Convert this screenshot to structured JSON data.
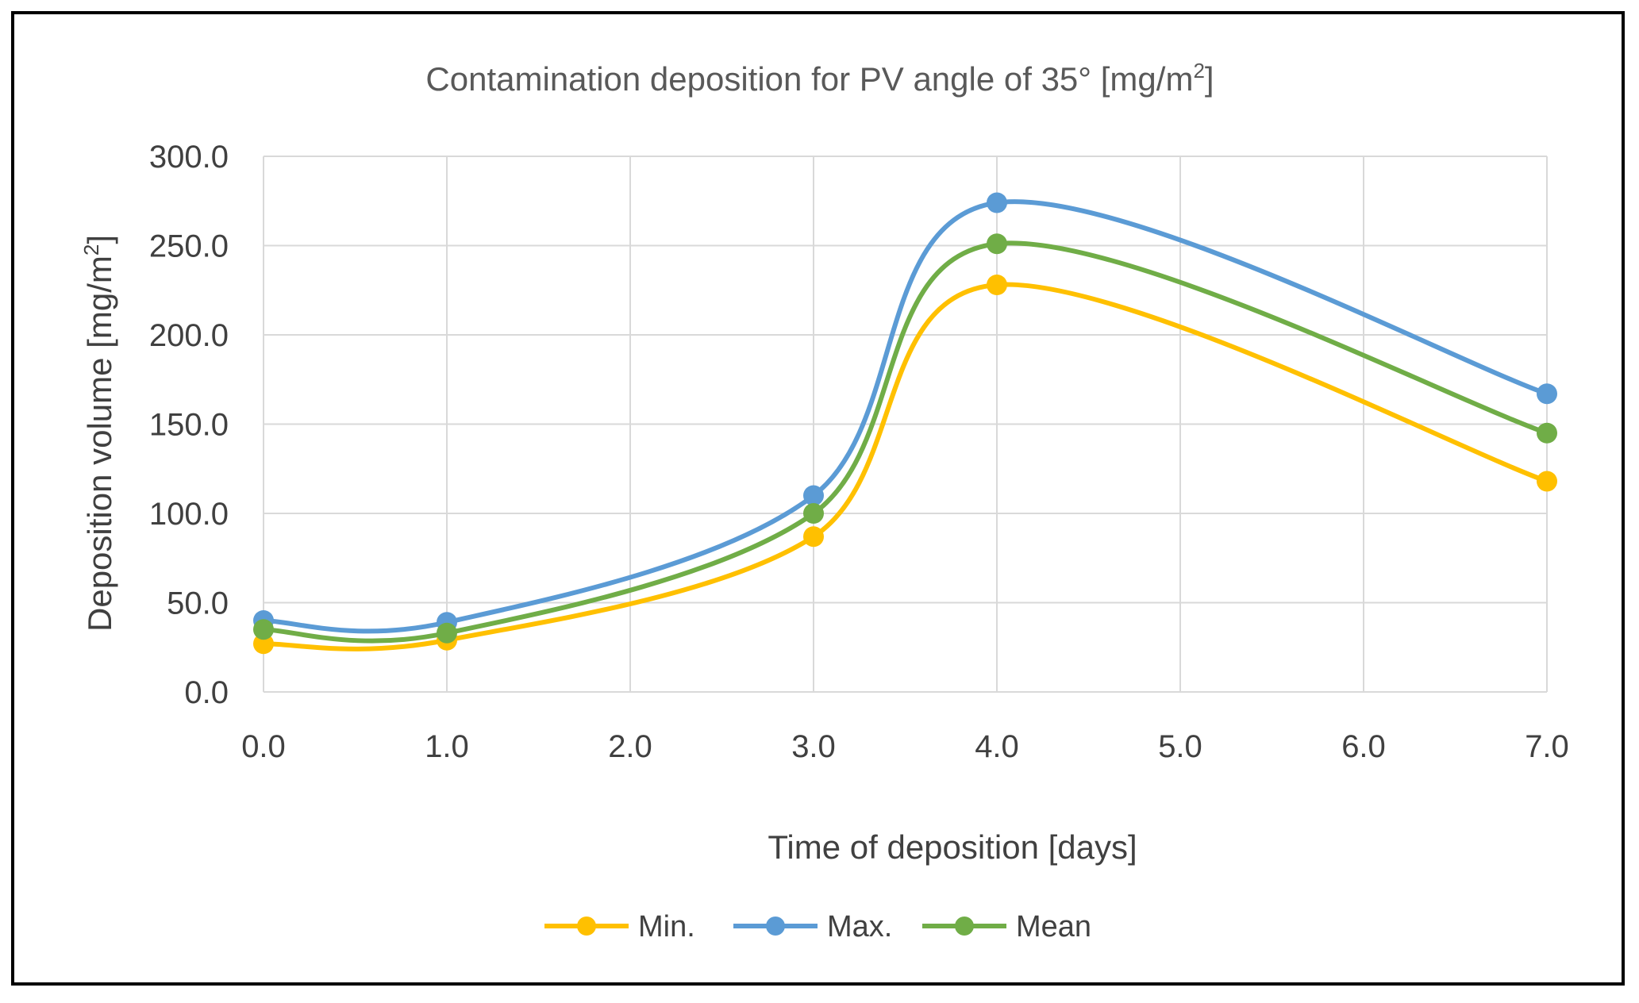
{
  "chart_data": {
    "type": "line",
    "title": "Contamination deposition for PV angle of 35° [mg/m",
    "title_sup": "2",
    "title_end": "]",
    "xlabel": "Time of deposition [days]",
    "ylabel": "Deposition volume [mg/m",
    "ylabel_sup": "2",
    "ylabel_end": "]",
    "xlim": [
      0,
      7
    ],
    "ylim": [
      0,
      300
    ],
    "x_ticks": [
      0,
      1,
      2,
      3,
      4,
      5,
      6,
      7
    ],
    "x_tick_labels": [
      "0.0",
      "1.0",
      "2.0",
      "3.0",
      "4.0",
      "5.0",
      "6.0",
      "7.0"
    ],
    "y_ticks": [
      0,
      50,
      100,
      150,
      200,
      250,
      300
    ],
    "y_tick_labels": [
      "0.0",
      "50.0",
      "100.0",
      "150.0",
      "200.0",
      "250.0",
      "300.0"
    ],
    "grid": true,
    "legend_position": "bottom",
    "x": [
      0,
      1,
      3,
      4,
      7
    ],
    "series": [
      {
        "name": "Min.",
        "color": "#FFC000",
        "values": [
          27,
          29,
          87,
          228,
          118
        ]
      },
      {
        "name": "Max.",
        "color": "#5B9BD5",
        "values": [
          40,
          39,
          110,
          274,
          167
        ]
      },
      {
        "name": "Mean",
        "color": "#70AD47",
        "values": [
          35,
          33,
          100,
          251,
          145
        ]
      }
    ]
  }
}
